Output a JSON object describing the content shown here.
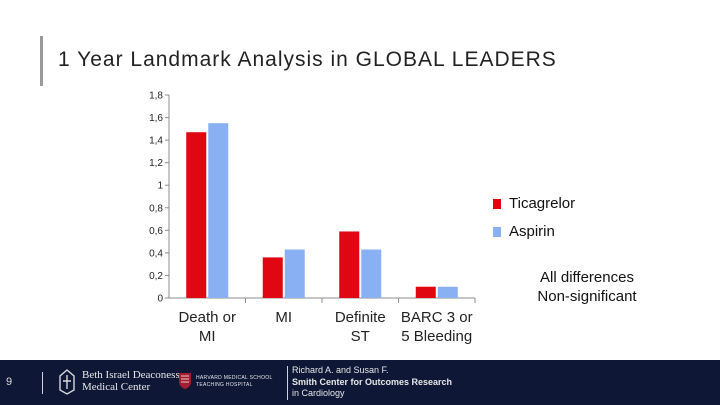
{
  "slide": {
    "title": "1 Year Landmark Analysis in GLOBAL LEADERS",
    "page_number": "9",
    "note_lines": [
      "All differences",
      "Non-significant"
    ]
  },
  "colors": {
    "ticagrelor": "#e00712",
    "aspirin": "#8ab0f4",
    "footer": "#0e1836",
    "axis": "#8c8c8c"
  },
  "chart_data": {
    "type": "bar",
    "categories": [
      [
        "Death or",
        "MI"
      ],
      [
        "MI"
      ],
      [
        "Definite",
        "ST"
      ],
      [
        "BARC 3 or",
        "5 Bleeding"
      ]
    ],
    "y_ticks": [
      "0",
      "0,2",
      "0,4",
      "0,6",
      "0,8",
      "1",
      "1,2",
      "1,4",
      "1,6",
      "1,8"
    ],
    "ylim": [
      0,
      1.8
    ],
    "grid": false,
    "legend_position": "right",
    "series": [
      {
        "name": "Ticagrelor",
        "values": [
          1.47,
          0.36,
          0.59,
          0.1
        ]
      },
      {
        "name": "Aspirin",
        "values": [
          1.55,
          0.43,
          0.43,
          0.1
        ]
      }
    ]
  },
  "footer": {
    "bidmc_lines": [
      "Beth Israel Deaconess",
      "Medical Center"
    ],
    "hms_lines": [
      "HARVARD MEDICAL SCHOOL",
      "TEACHING HOSPITAL"
    ],
    "smith_lines": [
      "Richard A. and Susan F.",
      "Smith Center for Outcomes Research",
      "in Cardiology"
    ]
  }
}
